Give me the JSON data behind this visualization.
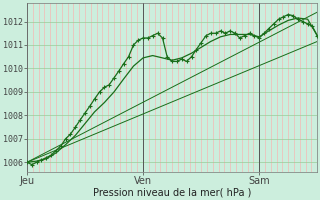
{
  "bg_color": "#cceedd",
  "grid_color_v": "#ffaaaa",
  "grid_color_h": "#99cc99",
  "line_color": "#1a6e1a",
  "xlabel": "Pression niveau de la mer( hPa )",
  "xtick_labels": [
    "Jeu",
    "Ven",
    "Sam"
  ],
  "xtick_positions": [
    0.0,
    0.4,
    0.8
  ],
  "ylim": [
    1005.6,
    1012.8
  ],
  "yticks": [
    1006,
    1007,
    1008,
    1009,
    1010,
    1011,
    1012
  ],
  "xlim": [
    0.0,
    1.0
  ],
  "vline_positions": [
    0.0,
    0.4,
    0.8
  ],
  "main_line": {
    "x": [
      0.0,
      0.017,
      0.033,
      0.05,
      0.067,
      0.083,
      0.1,
      0.117,
      0.133,
      0.15,
      0.167,
      0.183,
      0.2,
      0.217,
      0.233,
      0.25,
      0.267,
      0.283,
      0.3,
      0.317,
      0.333,
      0.35,
      0.367,
      0.383,
      0.4,
      0.417,
      0.433,
      0.45,
      0.467,
      0.483,
      0.5,
      0.517,
      0.533,
      0.55,
      0.567,
      0.583,
      0.6,
      0.617,
      0.633,
      0.65,
      0.667,
      0.683,
      0.7,
      0.717,
      0.733,
      0.75,
      0.767,
      0.783,
      0.8,
      0.817,
      0.833,
      0.85,
      0.867,
      0.883,
      0.9,
      0.917,
      0.933,
      0.95,
      0.967,
      0.983,
      1.0
    ],
    "y": [
      1006.0,
      1005.9,
      1006.0,
      1006.1,
      1006.2,
      1006.3,
      1006.5,
      1006.7,
      1007.0,
      1007.2,
      1007.5,
      1007.8,
      1008.1,
      1008.4,
      1008.7,
      1009.0,
      1009.2,
      1009.3,
      1009.6,
      1009.9,
      1010.2,
      1010.5,
      1011.0,
      1011.2,
      1011.3,
      1011.3,
      1011.4,
      1011.5,
      1011.3,
      1010.5,
      1010.3,
      1010.3,
      1010.4,
      1010.3,
      1010.5,
      1010.8,
      1011.1,
      1011.4,
      1011.5,
      1011.5,
      1011.6,
      1011.5,
      1011.6,
      1011.5,
      1011.3,
      1011.4,
      1011.5,
      1011.4,
      1011.3,
      1011.5,
      1011.7,
      1011.9,
      1012.1,
      1012.2,
      1012.3,
      1012.25,
      1012.1,
      1012.0,
      1011.9,
      1011.8,
      1011.4
    ]
  },
  "linear_line1": {
    "x": [
      0.0,
      1.0
    ],
    "y": [
      1006.0,
      1011.15
    ]
  },
  "linear_line2": {
    "x": [
      0.0,
      1.0
    ],
    "y": [
      1006.0,
      1012.4
    ]
  },
  "smooth_line": {
    "x": [
      0.0,
      0.033,
      0.067,
      0.1,
      0.133,
      0.167,
      0.2,
      0.233,
      0.267,
      0.3,
      0.333,
      0.367,
      0.4,
      0.433,
      0.467,
      0.5,
      0.533,
      0.567,
      0.6,
      0.633,
      0.667,
      0.7,
      0.733,
      0.767,
      0.8,
      0.833,
      0.867,
      0.9,
      0.933,
      0.967,
      1.0
    ],
    "y": [
      1006.0,
      1006.05,
      1006.15,
      1006.4,
      1006.75,
      1007.15,
      1007.65,
      1008.15,
      1008.55,
      1009.0,
      1009.55,
      1010.1,
      1010.45,
      1010.55,
      1010.45,
      1010.35,
      1010.45,
      1010.65,
      1010.9,
      1011.15,
      1011.35,
      1011.45,
      1011.45,
      1011.45,
      1011.35,
      1011.6,
      1011.85,
      1012.05,
      1012.15,
      1012.1,
      1011.4
    ]
  },
  "title_fontsize": 7,
  "tick_fontsize": 6
}
